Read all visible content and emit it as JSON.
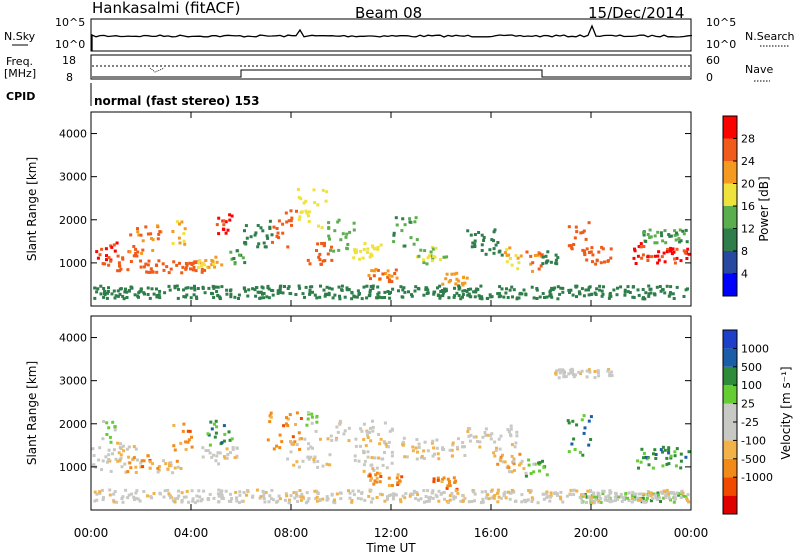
{
  "header": {
    "site": "Hankasalmi (fitACF)",
    "beam": "Beam 08",
    "date": "15/Dec/2014"
  },
  "top_panels": {
    "nsky_label": "N.Sky",
    "nsky_ticks": [
      "10^5",
      "10^0"
    ],
    "nsearch_label": "N.Search",
    "freq_label": "Freq.",
    "freq_unit": "[MHz]",
    "freq_ticks": [
      "18",
      "8"
    ],
    "nave_ticks": [
      "60",
      "0"
    ],
    "nave_label": "Nave",
    "cpid_label": "CPID",
    "cpid_text": "normal (fast stereo) 153"
  },
  "colors": {
    "power_scale": [
      "#0000ff",
      "#274aa0",
      "#2e7d4a",
      "#5bae4e",
      "#f0e23c",
      "#f59a20",
      "#f05a1a",
      "#ff0000"
    ],
    "velocity_scale": [
      "#e10000",
      "#ef4a00",
      "#f28a1a",
      "#f2b24a",
      "#c8c8c4",
      "#c8c8c4",
      "#66cc33",
      "#2e8b3a",
      "#1b5ea8",
      "#1e3fc8"
    ]
  },
  "chart_data": [
    {
      "type": "heatmap",
      "xlabel": "",
      "ylabel": "Slant Range [km]",
      "x_ticks": [
        "00:00",
        "04:00",
        "08:00",
        "12:00",
        "16:00",
        "20:00",
        "00:00"
      ],
      "y_ticks": [
        "1000",
        "2000",
        "3000",
        "4000"
      ],
      "ylim": [
        0,
        4500
      ],
      "colorbar_label": "Power [dB]",
      "colorbar_ticks": [
        "4",
        "8",
        "12",
        "16",
        "20",
        "24",
        "28"
      ],
      "colorbar_range": [
        0,
        32
      ],
      "regions": [
        {
          "t0": 0.0,
          "t1": 1.0,
          "r0": 900,
          "r1": 1500,
          "level": 28
        },
        {
          "t0": 1.0,
          "t1": 2.0,
          "r0": 850,
          "r1": 1300,
          "level": 26
        },
        {
          "t0": 1.5,
          "t1": 2.8,
          "r0": 1200,
          "r1": 1900,
          "level": 24
        },
        {
          "t0": 2.0,
          "t1": 4.5,
          "r0": 800,
          "r1": 1100,
          "level": 27
        },
        {
          "t0": 3.2,
          "t1": 3.8,
          "r0": 1300,
          "r1": 2100,
          "level": 20
        },
        {
          "t0": 4.2,
          "t1": 5.2,
          "r0": 900,
          "r1": 1200,
          "level": 20
        },
        {
          "t0": 4.8,
          "t1": 5.6,
          "r0": 1700,
          "r1": 2200,
          "level": 28
        },
        {
          "t0": 5.5,
          "t1": 6.2,
          "r0": 1000,
          "r1": 1500,
          "level": 12
        },
        {
          "t0": 6.0,
          "t1": 7.2,
          "r0": 1400,
          "r1": 2000,
          "level": 10
        },
        {
          "t0": 7.2,
          "t1": 8.2,
          "r0": 1400,
          "r1": 2300,
          "level": 26
        },
        {
          "t0": 8.2,
          "t1": 9.4,
          "r0": 1800,
          "r1": 2800,
          "level": 18
        },
        {
          "t0": 8.6,
          "t1": 9.6,
          "r0": 1000,
          "r1": 1600,
          "level": 26
        },
        {
          "t0": 9.4,
          "t1": 10.6,
          "r0": 1300,
          "r1": 2100,
          "level": 14
        },
        {
          "t0": 10.4,
          "t1": 11.6,
          "r0": 1100,
          "r1": 1500,
          "level": 18
        },
        {
          "t0": 11.0,
          "t1": 12.2,
          "r0": 600,
          "r1": 900,
          "level": 24
        },
        {
          "t0": 12.0,
          "t1": 13.0,
          "r0": 1400,
          "r1": 2100,
          "level": 12
        },
        {
          "t0": 13.0,
          "t1": 14.2,
          "r0": 1000,
          "r1": 1400,
          "level": 16
        },
        {
          "t0": 14.0,
          "t1": 15.0,
          "r0": 500,
          "r1": 800,
          "level": 22
        },
        {
          "t0": 15.0,
          "t1": 16.5,
          "r0": 1200,
          "r1": 1800,
          "level": 10
        },
        {
          "t0": 16.5,
          "t1": 17.2,
          "r0": 900,
          "r1": 1400,
          "level": 20
        },
        {
          "t0": 17.3,
          "t1": 18.0,
          "r0": 800,
          "r1": 1300,
          "level": 24
        },
        {
          "t0": 18.0,
          "t1": 18.8,
          "r0": 1000,
          "r1": 1300,
          "level": 10
        },
        {
          "t0": 19.0,
          "t1": 19.9,
          "r0": 1200,
          "r1": 2000,
          "level": 26
        },
        {
          "t0": 19.6,
          "t1": 20.8,
          "r0": 1000,
          "r1": 1400,
          "level": 26
        },
        {
          "t0": 21.5,
          "t1": 22.4,
          "r0": 1000,
          "r1": 1500,
          "level": 28
        },
        {
          "t0": 22.4,
          "t1": 24.0,
          "r0": 1000,
          "r1": 1400,
          "level": 28
        },
        {
          "t0": 22.0,
          "t1": 24.0,
          "r0": 1500,
          "r1": 1800,
          "level": 12
        },
        {
          "t0": 0.0,
          "t1": 24.0,
          "r0": 200,
          "r1": 500,
          "level": 10
        }
      ]
    },
    {
      "type": "heatmap",
      "xlabel": "Time UT",
      "ylabel": "Slant Range [km]",
      "x_ticks": [
        "00:00",
        "04:00",
        "08:00",
        "12:00",
        "16:00",
        "20:00",
        "00:00"
      ],
      "y_ticks": [
        "1000",
        "2000",
        "3000",
        "4000"
      ],
      "ylim": [
        0,
        4500
      ],
      "colorbar_label": "Velocity [m s⁻¹]",
      "colorbar_ticks": [
        "1000",
        "500",
        "100",
        "25",
        "-25",
        "-100",
        "-500",
        "-1000"
      ],
      "regions": [
        {
          "t0": 0.0,
          "t1": 1.4,
          "r0": 900,
          "r1": 1500,
          "level": 4
        },
        {
          "t0": 0.4,
          "t1": 1.0,
          "r0": 1600,
          "r1": 2100,
          "level": 6
        },
        {
          "t0": 1.0,
          "t1": 2.0,
          "r0": 1100,
          "r1": 1600,
          "level": 4
        },
        {
          "t0": 1.4,
          "t1": 2.4,
          "r0": 900,
          "r1": 1300,
          "level": 2
        },
        {
          "t0": 2.6,
          "t1": 3.6,
          "r0": 900,
          "r1": 1200,
          "level": 3
        },
        {
          "t0": 3.2,
          "t1": 4.0,
          "r0": 1400,
          "r1": 2100,
          "level": 2
        },
        {
          "t0": 4.4,
          "t1": 5.8,
          "r0": 1100,
          "r1": 1500,
          "level": 4
        },
        {
          "t0": 4.6,
          "t1": 5.6,
          "r0": 1500,
          "r1": 2100,
          "level": 7
        },
        {
          "t0": 7.0,
          "t1": 8.4,
          "r0": 1400,
          "r1": 2300,
          "level": 2
        },
        {
          "t0": 7.8,
          "t1": 9.6,
          "r0": 1000,
          "r1": 1700,
          "level": 4
        },
        {
          "t0": 8.4,
          "t1": 9.0,
          "r0": 1800,
          "r1": 2400,
          "level": 6
        },
        {
          "t0": 9.5,
          "t1": 12.0,
          "r0": 1500,
          "r1": 2100,
          "level": 4
        },
        {
          "t0": 10.5,
          "t1": 12.0,
          "r0": 900,
          "r1": 1400,
          "level": 4
        },
        {
          "t0": 11.0,
          "t1": 12.4,
          "r0": 600,
          "r1": 900,
          "level": 2
        },
        {
          "t0": 12.4,
          "t1": 15.0,
          "r0": 1200,
          "r1": 1700,
          "level": 4
        },
        {
          "t0": 13.6,
          "t1": 14.6,
          "r0": 500,
          "r1": 800,
          "level": 2
        },
        {
          "t0": 15.0,
          "t1": 17.0,
          "r0": 1400,
          "r1": 2000,
          "level": 4
        },
        {
          "t0": 16.0,
          "t1": 17.4,
          "r0": 900,
          "r1": 1400,
          "level": 3
        },
        {
          "t0": 17.3,
          "t1": 18.2,
          "r0": 800,
          "r1": 1200,
          "level": 6
        },
        {
          "t0": 19.0,
          "t1": 20.0,
          "r0": 1300,
          "r1": 2300,
          "level": 7
        },
        {
          "t0": 18.5,
          "t1": 20.8,
          "r0": 3100,
          "r1": 3300,
          "level": 4
        },
        {
          "t0": 21.8,
          "t1": 24.0,
          "r0": 1000,
          "r1": 1500,
          "level": 7
        },
        {
          "t0": 19.5,
          "t1": 24.0,
          "r0": 200,
          "r1": 450,
          "level": 6
        },
        {
          "t0": 0.0,
          "t1": 24.0,
          "r0": 200,
          "r1": 500,
          "level": 4
        }
      ]
    }
  ]
}
